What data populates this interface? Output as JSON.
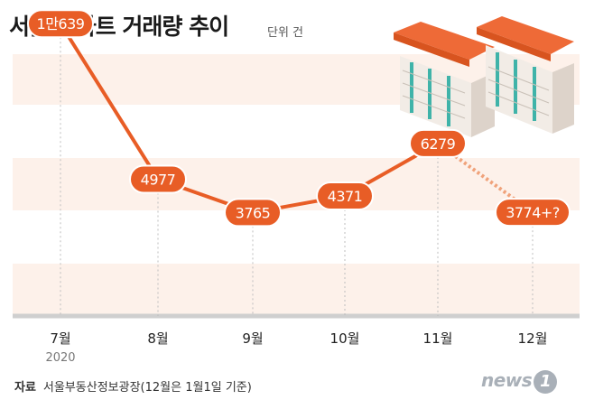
{
  "title": "서울 아파트 거래량 추이",
  "unit": "단위 건",
  "source_label": "자료",
  "source_text": "서울부동산정보광장(12월은 1월1일 기준)",
  "logo_text": "news",
  "logo_mark": "1",
  "year_label": "2020",
  "colors": {
    "accent": "#e85d26",
    "band": "#fdf1ea",
    "baseline": "#cfcfcf"
  },
  "chart_data": {
    "type": "line",
    "title": "서울 아파트 거래량 추이",
    "ylabel": "",
    "xlabel": "",
    "unit": "건",
    "categories": [
      "7월",
      "8월",
      "9월",
      "10월",
      "11월",
      "12월"
    ],
    "values": [
      10639,
      4977,
      3765,
      4371,
      6279,
      3774
    ],
    "value_labels": [
      "1만639",
      "4977",
      "3765",
      "4371",
      "6279",
      "3774+?"
    ],
    "provisional_last": true,
    "ylim": [
      0,
      11500
    ],
    "grid": false,
    "legend": "none"
  }
}
